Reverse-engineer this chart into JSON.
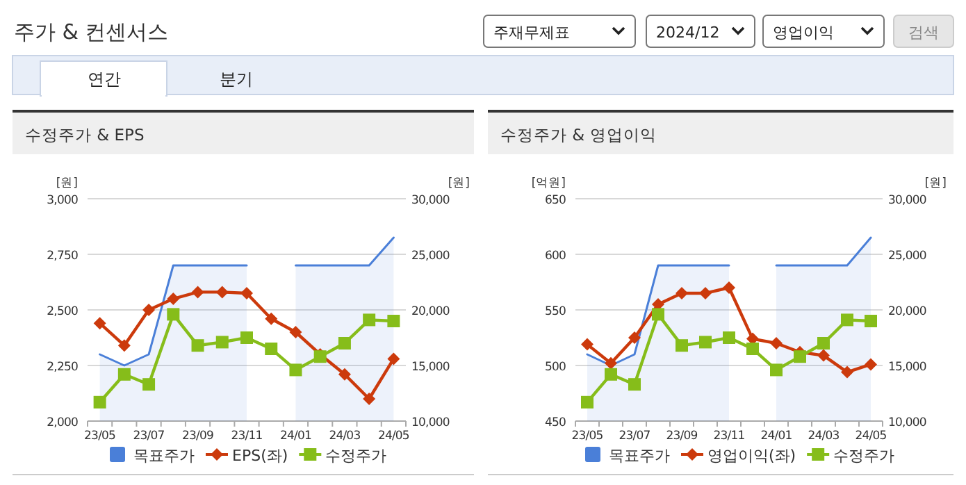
{
  "chart_data": [
    {
      "type": "other",
      "title": "주가 & 컨센서스",
      "annotations": [
        "주재무제표",
        "2024/12",
        "영업이익",
        "검색",
        "연간",
        "분기"
      ]
    },
    {
      "type": "line",
      "title": "수정주가 & EPS",
      "ylabel": "[원]",
      "y2label": "[원]",
      "categories": [
        "23/05",
        null,
        "23/07",
        null,
        "23/09",
        null,
        "23/11",
        null,
        "24/01",
        null,
        "24/03",
        null,
        "24/05"
      ],
      "ylim": [
        2000,
        3000
      ],
      "yticks": [
        {
          "value": 2000,
          "label": "2,000"
        },
        {
          "value": 2250,
          "label": "2,250"
        },
        {
          "value": 2500,
          "label": "2,500"
        },
        {
          "value": 2750,
          "label": "2,750"
        },
        {
          "value": 3000,
          "label": "3,000"
        }
      ],
      "y2lim": [
        10000,
        30000
      ],
      "y2ticks": [
        {
          "value": 10000,
          "label": "10,000"
        },
        {
          "value": 15000,
          "label": "15,000"
        },
        {
          "value": 20000,
          "label": "20,000"
        },
        {
          "value": 25000,
          "label": "25,000"
        },
        {
          "value": 30000,
          "label": "30,000"
        }
      ],
      "grid": "y",
      "legend": "bottom",
      "series": [
        {
          "name": "목표주가",
          "type": "area",
          "axis": "y2",
          "color": "#4a7fd8",
          "marker": "none",
          "values": [
            16000,
            15000,
            16000,
            24000,
            24000,
            24000,
            24000,
            null,
            24000,
            24000,
            24000,
            24000,
            26500
          ]
        },
        {
          "name": "EPS(좌)",
          "type": "line",
          "color": "#cc3a0c",
          "marker": "diamond",
          "values": [
            2440,
            2340,
            2500,
            2550,
            2580,
            2580,
            2575,
            2460,
            2400,
            2300,
            2210,
            2100,
            2280
          ]
        },
        {
          "name": "수정주가",
          "type": "line",
          "axis": "y2",
          "color": "#86bd1a",
          "marker": "square",
          "values": [
            11700,
            14200,
            13300,
            19600,
            16800,
            17100,
            17500,
            16500,
            14600,
            15800,
            17000,
            19100,
            19000
          ]
        }
      ]
    },
    {
      "type": "line",
      "title": "수정주가 & 영업이익",
      "ylabel": "[억원]",
      "y2label": "[원]",
      "categories": [
        "23/05",
        null,
        "23/07",
        null,
        "23/09",
        null,
        "23/11",
        null,
        "24/01",
        null,
        "24/03",
        null,
        "24/05"
      ],
      "ylim": [
        450,
        650
      ],
      "yticks": [
        450,
        500,
        550,
        600,
        650
      ],
      "y2lim": [
        10000,
        30000
      ],
      "y2ticks": [
        {
          "value": 10000,
          "label": "10,000"
        },
        {
          "value": 15000,
          "label": "15,000"
        },
        {
          "value": 20000,
          "label": "20,000"
        },
        {
          "value": 25000,
          "label": "25,000"
        },
        {
          "value": 30000,
          "label": "30,000"
        }
      ],
      "grid": "y",
      "legend": "bottom",
      "series": [
        {
          "name": "목표주가",
          "type": "area",
          "axis": "y2",
          "color": "#4a7fd8",
          "marker": "none",
          "values": [
            16000,
            15000,
            16000,
            24000,
            24000,
            24000,
            24000,
            null,
            24000,
            24000,
            24000,
            24000,
            26500
          ]
        },
        {
          "name": "영업이익(좌)",
          "type": "line",
          "color": "#cc3a0c",
          "marker": "diamond",
          "values": [
            519,
            502,
            525,
            555,
            565,
            565,
            570,
            524,
            520,
            512,
            509,
            494,
            501
          ]
        },
        {
          "name": "수정주가",
          "type": "line",
          "axis": "y2",
          "color": "#86bd1a",
          "marker": "square",
          "values": [
            11700,
            14200,
            13300,
            19600,
            16800,
            17100,
            17500,
            16500,
            14600,
            15800,
            17000,
            19100,
            19000
          ]
        }
      ]
    }
  ]
}
